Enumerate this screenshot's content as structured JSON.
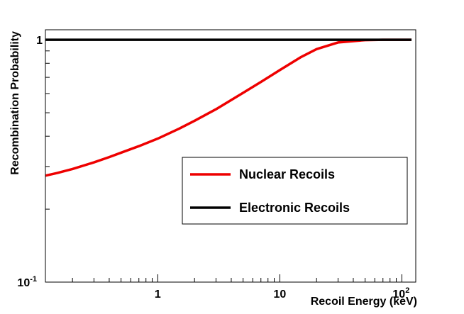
{
  "chart_data": {
    "type": "line",
    "xlabel": "Recoil Energy (keV)",
    "ylabel": "Recombination Probability",
    "x_scale": "log",
    "y_scale": "log",
    "xlim": [
      0.12,
      130
    ],
    "ylim": [
      0.1,
      1.1
    ],
    "x_tick_labels": [
      {
        "value": 1,
        "base": "1",
        "exp": ""
      },
      {
        "value": 10,
        "base": "10",
        "exp": ""
      },
      {
        "value": 100,
        "base": "10",
        "exp": "2"
      }
    ],
    "y_tick_labels": [
      {
        "value": 1,
        "base": "1",
        "exp": ""
      },
      {
        "value": 0.1,
        "base": "10",
        "exp": "-1"
      }
    ],
    "legend": {
      "placement": "bottom-right"
    },
    "series": [
      {
        "name": "Nuclear Recoils",
        "color": "#ee0000",
        "x": [
          0.12,
          0.15,
          0.2,
          0.3,
          0.4,
          0.5,
          0.7,
          1,
          1.5,
          2,
          3,
          5,
          7,
          10,
          15,
          20,
          30,
          50,
          70,
          100,
          120
        ],
        "y": [
          0.275,
          0.282,
          0.293,
          0.312,
          0.328,
          0.342,
          0.364,
          0.391,
          0.43,
          0.463,
          0.517,
          0.604,
          0.67,
          0.75,
          0.85,
          0.915,
          0.975,
          0.997,
          1.0,
          1.0,
          1.0
        ]
      },
      {
        "name": "Electronic Recoils",
        "color": "#000000",
        "x": [
          0.12,
          120
        ],
        "y": [
          1.0,
          1.0
        ]
      }
    ]
  }
}
